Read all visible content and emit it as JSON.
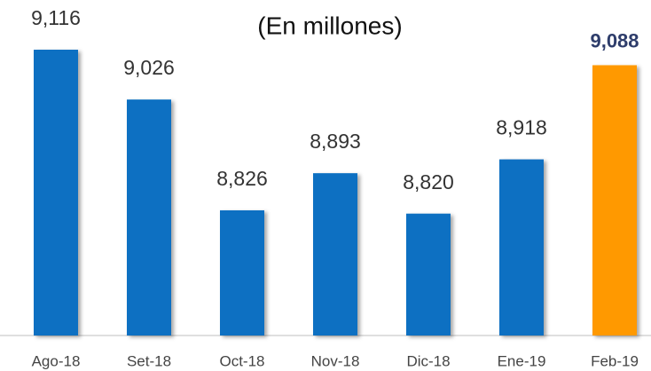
{
  "chart_data": {
    "type": "bar",
    "title": "(En millones)",
    "categories": [
      "Ago-18",
      "Set-18",
      "Oct-18",
      "Nov-18",
      "Dic-18",
      "Ene-19",
      "Feb-19"
    ],
    "values": [
      9116,
      9026,
      8826,
      8893,
      8820,
      8918,
      9088
    ],
    "value_labels": [
      "9,116",
      "9,026",
      "8,826",
      "8,893",
      "8,820",
      "8,918",
      "9,088"
    ],
    "colors": [
      "#0a6fc2",
      "#0a6fc2",
      "#0a6fc2",
      "#0a6fc2",
      "#0a6fc2",
      "#0a6fc2",
      "#ff9900"
    ],
    "ylim": [
      8600,
      9120
    ]
  }
}
